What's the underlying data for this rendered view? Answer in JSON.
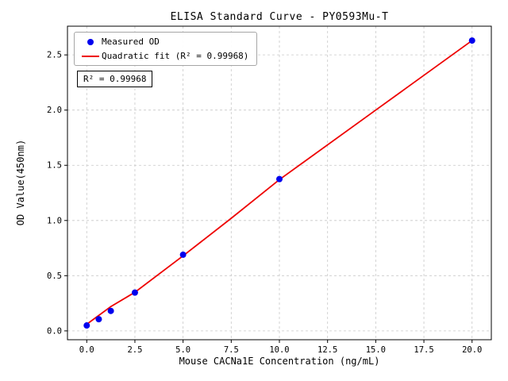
{
  "chart_data": {
    "type": "scatter",
    "title": "ELISA Standard Curve - PY0593Mu-T",
    "xlabel": "Mouse CACNa1E Concentration (ng/mL)",
    "ylabel": "OD Value(450nm)",
    "xlim": [
      -1,
      21
    ],
    "ylim": [
      -0.08,
      2.76
    ],
    "xticks": [
      0,
      2.5,
      5,
      7.5,
      10,
      12.5,
      15,
      17.5,
      20
    ],
    "yticks": [
      0,
      0.5,
      1,
      1.5,
      2,
      2.5
    ],
    "grid": true,
    "grid_style": "dashed",
    "legend": {
      "position": "upper-left",
      "entries": [
        {
          "label": "Measured OD",
          "marker": "dot",
          "color": "#0000ee"
        },
        {
          "label": "Quadratic fit (R² = 0.99968)",
          "marker": "line",
          "color": "#ee0000"
        }
      ]
    },
    "annotation": "R² = 0.99968",
    "series": [
      {
        "name": "Quadratic fit",
        "type": "line",
        "color": "#ee0000",
        "x": [
          0,
          1.25,
          2.5,
          5,
          7.5,
          10,
          15,
          20
        ],
        "y": [
          0.06,
          0.22,
          0.35,
          0.68,
          1.02,
          1.37,
          2.0,
          2.63
        ]
      },
      {
        "name": "Measured OD",
        "type": "scatter",
        "color": "#0000ee",
        "x": [
          0,
          0.625,
          1.25,
          2.5,
          5,
          10,
          20
        ],
        "y": [
          0.049,
          0.106,
          0.181,
          0.347,
          0.69,
          1.375,
          2.63
        ]
      }
    ]
  }
}
